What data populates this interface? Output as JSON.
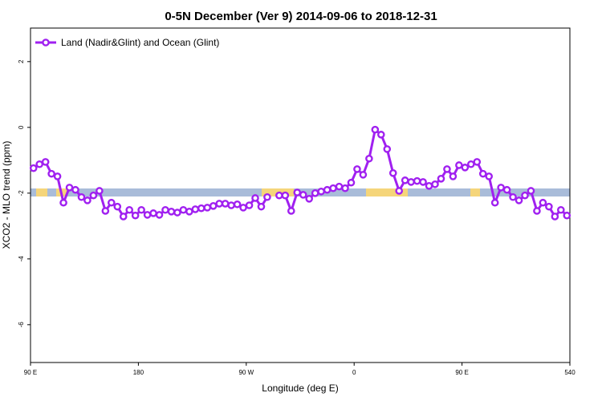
{
  "chart_data": {
    "type": "line",
    "title": "0-5N December (Ver 9)   2014-09-06 to 2018-12-31",
    "x_label": "Longitude (deg E)",
    "y_label": "XCO2 - MLO trend (ppm)",
    "xlim": [
      90,
      540
    ],
    "ylim": [
      -7.15,
      3.02
    ],
    "xticks": [
      {
        "value": 90,
        "label": "90 E"
      },
      180,
      {
        "value": 270,
        "label": "90 W"
      },
      {
        "value": 360,
        "label": "0"
      },
      {
        "value": 450,
        "label": "90 E"
      },
      540
    ],
    "yticks": [
      2,
      0,
      -2,
      -4,
      -6
    ],
    "legend_position": "top-left",
    "x": [
      92.5,
      97.5,
      102.5,
      107.5,
      112.5,
      117.5,
      122.5,
      127.5,
      132.5,
      137.5,
      142.5,
      147.5,
      152.5,
      157.5,
      162.5,
      167.5,
      172.5,
      177.5,
      182.5,
      187.5,
      192.5,
      197.5,
      202.5,
      207.5,
      212.5,
      217.5,
      222.5,
      227.5,
      232.5,
      237.5,
      242.5,
      247.5,
      252.5,
      257.5,
      262.5,
      267.5,
      272.5,
      277.5,
      282.5,
      287.5,
      292.5,
      297.5,
      302.5,
      307.5,
      312.5,
      317.5,
      322.5,
      327.5,
      332.5,
      337.5,
      342.5,
      347.5,
      352.5,
      357.5,
      362.5,
      367.5,
      372.5,
      377.5,
      382.5,
      387.5,
      392.5,
      397.5,
      402.5,
      407.5,
      412.5,
      417.5,
      422.5,
      427.5,
      432.5,
      437.5,
      442.5,
      447.5,
      452.5,
      457.5,
      462.5,
      467.5,
      472.5,
      477.5,
      482.5,
      487.5,
      492.5,
      497.5,
      502.5,
      507.5,
      512.5,
      517.5,
      522.5,
      527.5,
      532.5,
      537.5
    ],
    "series": [
      {
        "name": "Land (Nadir&Glint) and Ocean (Glint)",
        "color": "#a020f0",
        "values": [
          -1.24,
          -1.12,
          -1.05,
          -1.41,
          -1.49,
          -2.29,
          -1.83,
          -1.9,
          -2.12,
          -2.22,
          -2.07,
          -1.93,
          -2.54,
          -2.29,
          -2.41,
          -2.71,
          -2.51,
          -2.68,
          -2.51,
          -2.66,
          -2.61,
          -2.66,
          -2.51,
          -2.56,
          -2.59,
          -2.51,
          -2.56,
          -2.49,
          -2.46,
          -2.44,
          -2.39,
          -2.32,
          -2.32,
          -2.37,
          -2.34,
          -2.44,
          -2.37,
          -2.15,
          -2.41,
          -2.12,
          null,
          -2.07,
          -2.07,
          -2.54,
          -1.98,
          -2.05,
          -2.17,
          -2.0,
          -1.95,
          -1.9,
          -1.85,
          -1.8,
          -1.85,
          -1.68,
          -1.27,
          -1.44,
          -0.95,
          -0.07,
          -0.22,
          -0.66,
          -1.39,
          -1.93,
          -1.61,
          -1.66,
          -1.63,
          -1.66,
          -1.78,
          -1.73,
          -1.56,
          -1.27,
          -1.49,
          -1.15,
          -1.22,
          -1.12,
          -1.05,
          -1.41,
          -1.49,
          -2.29,
          -1.83,
          -1.9,
          -2.12,
          -2.22,
          -2.07,
          -1.93,
          -2.54,
          -2.29,
          -2.41,
          -2.71,
          -2.51,
          -2.68
        ]
      }
    ]
  }
}
